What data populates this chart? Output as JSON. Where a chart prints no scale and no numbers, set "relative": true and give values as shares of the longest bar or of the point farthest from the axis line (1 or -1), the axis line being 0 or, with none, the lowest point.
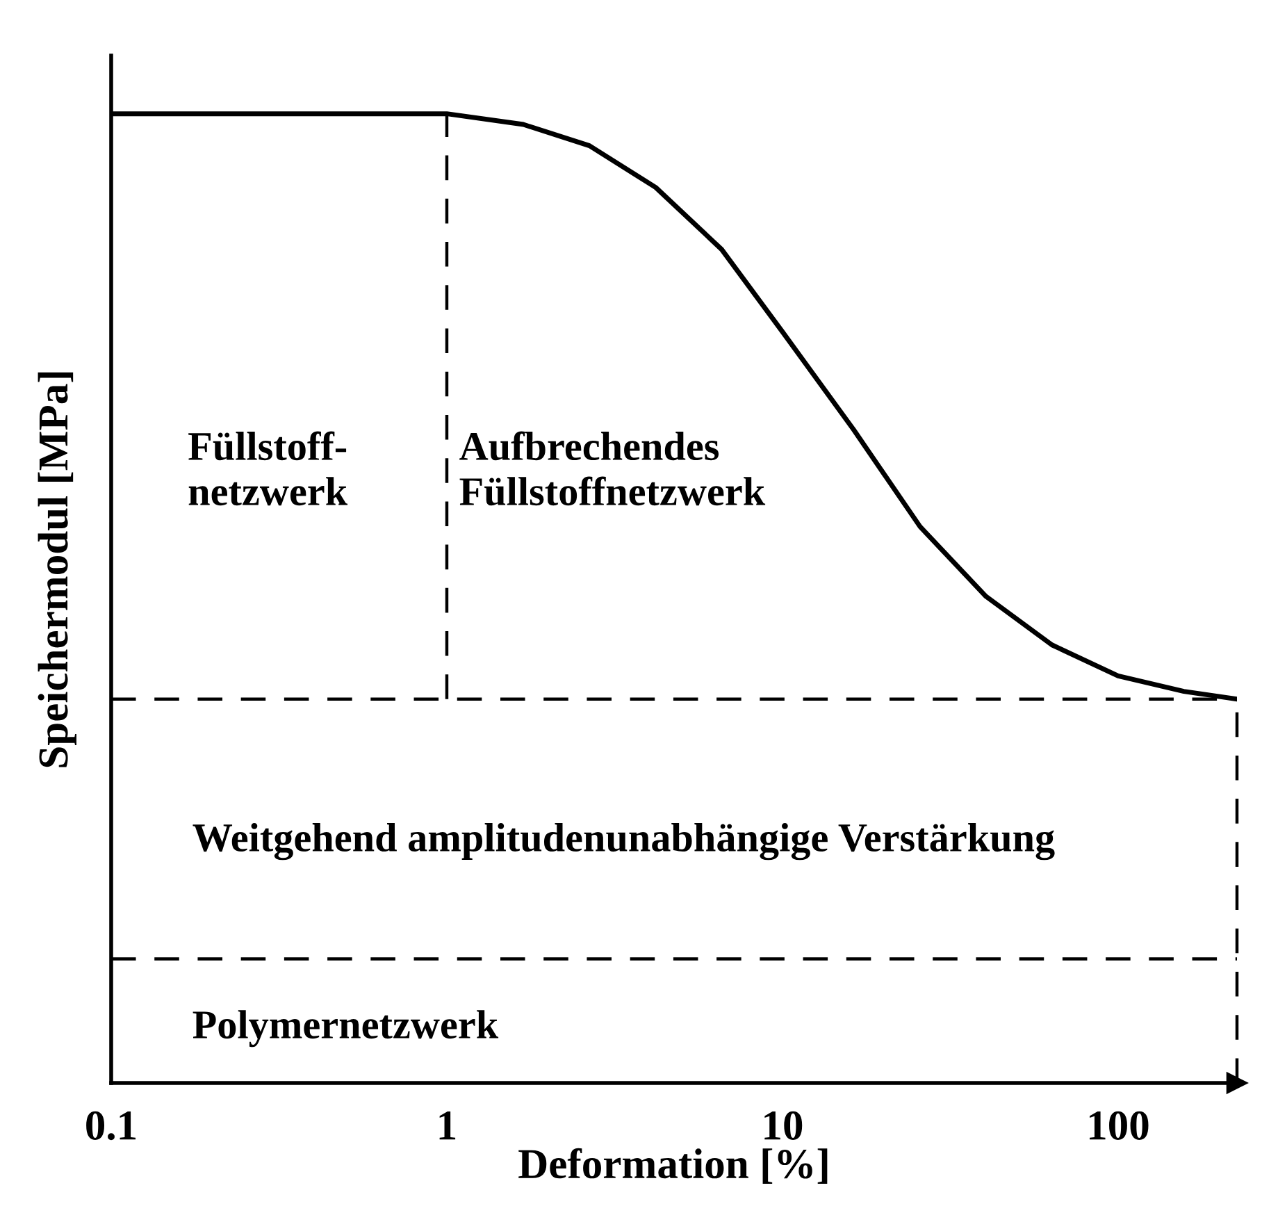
{
  "chart_data": {
    "type": "line",
    "relative": true,
    "log": "x",
    "xlabel": "Deformation [%]",
    "ylabel": "Speichermodul [MPa]",
    "xlim": [
      0.1,
      226
    ],
    "xticks": [
      0.1,
      1,
      10,
      100
    ],
    "x": [
      0.1,
      1,
      1.69,
      2.66,
      4.19,
      6.59,
      10,
      16.3,
      25.7,
      40.4,
      63.5,
      100,
      157,
      226
    ],
    "series": [
      {
        "color": "#000000",
        "values": [
          1.0,
          1.0,
          0.989,
          0.967,
          0.924,
          0.86,
          0.775,
          0.674,
          0.574,
          0.502,
          0.452,
          0.42,
          0.404,
          0.396
        ]
      }
    ],
    "marker": "none",
    "line_style": "solid",
    "grid": false,
    "ref_lines": [
      {
        "axis": "y",
        "value": 0.396,
        "color": "#000000",
        "line_style": "dashed"
      },
      {
        "axis": "y",
        "value": 0.128,
        "color": "#000000",
        "line_style": "dashed"
      },
      {
        "axis": "x",
        "value": 1,
        "color": "#000000",
        "line_style": "dashed"
      },
      {
        "axis": "x",
        "value": 226,
        "color": "#000000",
        "line_style": "dashed"
      }
    ],
    "annotations": [
      "Füllstoff-\nnetzwerk",
      "Aufbrechendes\nFüllstoffnetzwerk",
      "Weitgehend amplitudenunabhängige Verstärkung",
      "Polymernetzwerk"
    ]
  }
}
